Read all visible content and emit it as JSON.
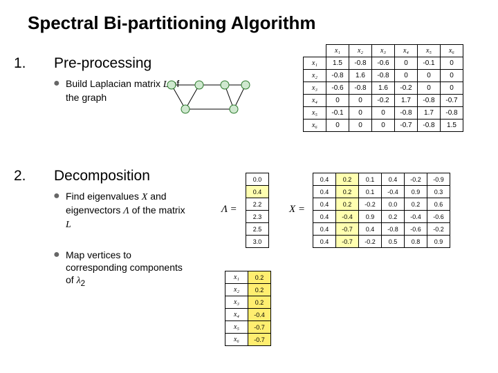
{
  "title": "Spectral Bi-partitioning Algorithm",
  "preprocessing": {
    "num": "1.",
    "head": "Pre-processing",
    "bullet": "Build Laplacian matrix <i>L</i> of the graph"
  },
  "decomposition": {
    "num": "2.",
    "head": "Decomposition",
    "b1": "Find eigenvalues <i>X</i> and eigenvectors <i>Λ</i> of the matrix <i>L</i>",
    "b2": "Map vertices to corresponding components of <i>λ</i><sub>2</sub>"
  },
  "L_headers": [
    "x₁",
    "x₂",
    "x₃",
    "x₄",
    "x₅",
    "x₆"
  ],
  "L": [
    [
      "1.5",
      "-0.8",
      "-0.6",
      "0",
      "-0.1",
      "0"
    ],
    [
      "-0.8",
      "1.6",
      "-0.8",
      "0",
      "0",
      "0"
    ],
    [
      "-0.6",
      "-0.8",
      "1.6",
      "-0.2",
      "0",
      "0"
    ],
    [
      "0",
      "0",
      "-0.2",
      "1.7",
      "-0.8",
      "-0.7"
    ],
    [
      "-0.1",
      "0",
      "0",
      "-0.8",
      "1.7",
      "-0.8"
    ],
    [
      "0",
      "0",
      "0",
      "-0.7",
      "-0.8",
      "1.5"
    ]
  ],
  "Lambda": [
    "0.0",
    "0.4",
    "2.2",
    "2.3",
    "2.5",
    "3.0"
  ],
  "X": [
    [
      "0.4",
      "0.2",
      "0.1",
      "0.4",
      "-0.2",
      "-0.9"
    ],
    [
      "0.4",
      "0.2",
      "0.1",
      "-0.4",
      "0.9",
      "0.3"
    ],
    [
      "0.4",
      "0.2",
      "-0.2",
      "0.0",
      "0.2",
      "0.6"
    ],
    [
      "0.4",
      "-0.4",
      "0.9",
      "0.2",
      "-0.4",
      "-0.6"
    ],
    [
      "0.4",
      "-0.7",
      "0.4",
      "-0.8",
      "-0.6",
      "-0.2"
    ],
    [
      "0.4",
      "-0.7",
      "-0.2",
      "0.5",
      "0.8",
      "0.9"
    ]
  ],
  "lambda2": [
    [
      "x₁",
      "0.2"
    ],
    [
      "x₂",
      "0.2"
    ],
    [
      "x₃",
      "0.2"
    ],
    [
      "x₄",
      "-0.4"
    ],
    [
      "x₅",
      "-0.7"
    ],
    [
      "x₆",
      "-0.7"
    ]
  ]
}
